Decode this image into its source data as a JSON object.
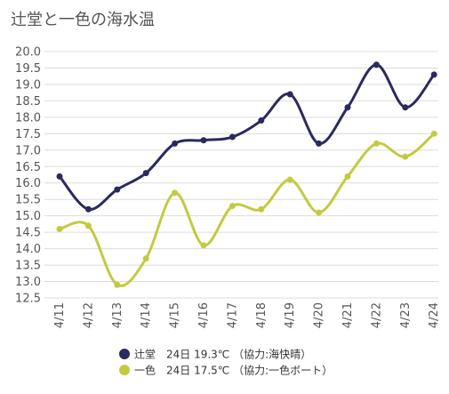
{
  "chart_data": {
    "type": "line",
    "title": "辻堂と一色の海水温",
    "categories": [
      "4/11",
      "4/12",
      "4/13",
      "4/14",
      "4/15",
      "4/16",
      "4/17",
      "4/18",
      "4/19",
      "4/20",
      "4/21",
      "4/22",
      "4/23",
      "4/24"
    ],
    "ylim": [
      12.5,
      20.0
    ],
    "y_ticks": [
      12.5,
      13.0,
      13.5,
      14.0,
      14.5,
      15.0,
      15.5,
      16.0,
      16.5,
      17.0,
      17.5,
      18.0,
      18.5,
      19.0,
      19.5,
      20.0
    ],
    "grid": true,
    "legend_placement": "bottom",
    "series": [
      {
        "name": "辻堂　24日 19.3℃ （協力:海快晴）",
        "color": "#2b2a5e",
        "values": [
          16.2,
          15.2,
          15.8,
          16.3,
          17.2,
          17.3,
          17.4,
          17.9,
          18.7,
          17.2,
          18.3,
          19.6,
          18.3,
          19.3
        ]
      },
      {
        "name": "一色　24日 17.5℃ （協力:一色ボート）",
        "color": "#c2cb3f",
        "values": [
          14.6,
          14.7,
          12.9,
          13.7,
          15.7,
          14.1,
          15.3,
          15.2,
          16.1,
          15.1,
          16.2,
          17.2,
          16.8,
          17.5
        ]
      }
    ]
  }
}
